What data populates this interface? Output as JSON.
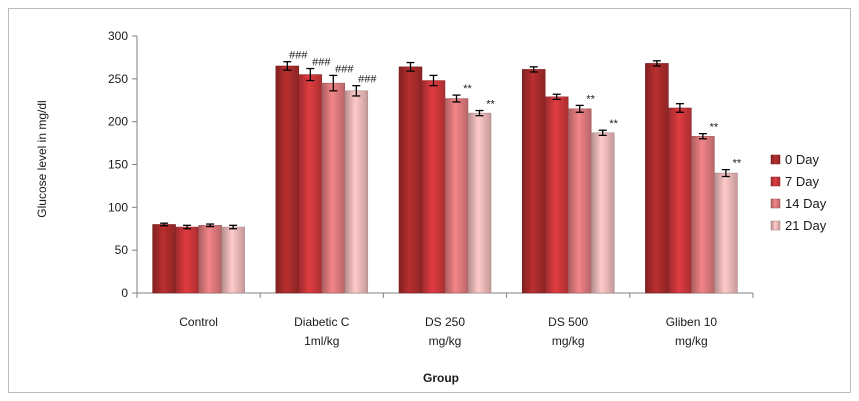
{
  "chart_data": {
    "type": "bar",
    "title": "",
    "xlabel": "Group",
    "ylabel": "Glucose level in mg/dl",
    "ylim": [
      0,
      300
    ],
    "yticks": [
      0,
      50,
      100,
      150,
      200,
      250,
      300
    ],
    "grid": false,
    "legend_position": "right",
    "categories": [
      [
        "Control"
      ],
      [
        "Diabetic C",
        "1ml/kg"
      ],
      [
        "DS 250",
        "mg/kg"
      ],
      [
        "DS 500",
        "mg/kg"
      ],
      [
        "Gliben 10",
        "mg/kg"
      ]
    ],
    "series": [
      {
        "name": "0 Day",
        "color": "#a52a2a",
        "values": [
          80,
          265,
          264,
          261,
          268
        ],
        "errors": [
          1.5,
          5,
          5,
          3,
          3
        ],
        "annotations": [
          "",
          "###",
          "",
          "",
          ""
        ]
      },
      {
        "name": "7 Day",
        "color": "#c8363a",
        "values": [
          77,
          255,
          248,
          229,
          216
        ],
        "errors": [
          2,
          7,
          6,
          3,
          5
        ],
        "annotations": [
          "",
          "###",
          "",
          "",
          ""
        ]
      },
      {
        "name": "14 Day",
        "color": "#d9777a",
        "values": [
          79,
          245,
          227,
          215,
          183
        ],
        "errors": [
          1.5,
          9,
          4,
          4,
          3
        ],
        "annotations": [
          "",
          "###",
          "**",
          "**",
          "**"
        ]
      },
      {
        "name": "21 Day",
        "color": "#e7b4b4",
        "values": [
          77,
          236,
          210,
          187,
          140
        ],
        "errors": [
          2,
          6,
          3,
          3,
          4
        ],
        "annotations": [
          "",
          "###",
          "**",
          "**",
          "**"
        ]
      }
    ]
  }
}
